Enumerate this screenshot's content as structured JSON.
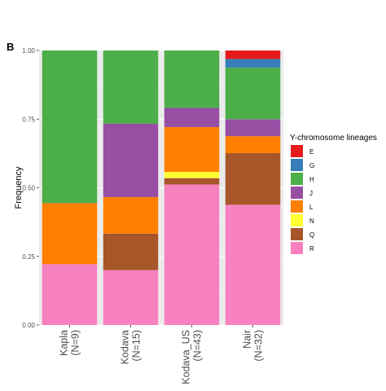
{
  "panel_label": "B",
  "chart_data": {
    "type": "bar",
    "stacked": true,
    "normalized": true,
    "categories": [
      "Kapla\n(N=9)",
      "Kodava\n(N=15)",
      "Kodava_US\n(N=43)",
      "Nair\n(N=32)"
    ],
    "ylabel": "Frequency",
    "xlabel": "",
    "ylim": [
      0,
      1
    ],
    "yticks": [
      "0.00",
      "0.25",
      "0.50",
      "0.75",
      "1.00"
    ],
    "grid": true,
    "legend": {
      "title": "Y-chromosome lineages",
      "position": "right"
    },
    "series": [
      {
        "name": "E",
        "color": "#E41A1C",
        "values": [
          0,
          0,
          0,
          0.031
        ]
      },
      {
        "name": "G",
        "color": "#377EB8",
        "values": [
          0,
          0,
          0,
          0.031
        ]
      },
      {
        "name": "H",
        "color": "#4DAF4A",
        "values": [
          0.556,
          0.267,
          0.209,
          0.188
        ]
      },
      {
        "name": "J",
        "color": "#984EA3",
        "values": [
          0,
          0.267,
          0.07,
          0.062
        ]
      },
      {
        "name": "L",
        "color": "#FF7F00",
        "values": [
          0.222,
          0.133,
          0.163,
          0.062
        ]
      },
      {
        "name": "N",
        "color": "#FFFF33",
        "values": [
          0,
          0,
          0.023,
          0
        ]
      },
      {
        "name": "Q",
        "color": "#A65628",
        "values": [
          0,
          0.133,
          0.023,
          0.188
        ]
      },
      {
        "name": "R",
        "color": "#F781BF",
        "values": [
          0.222,
          0.2,
          0.512,
          0.438
        ]
      }
    ]
  }
}
